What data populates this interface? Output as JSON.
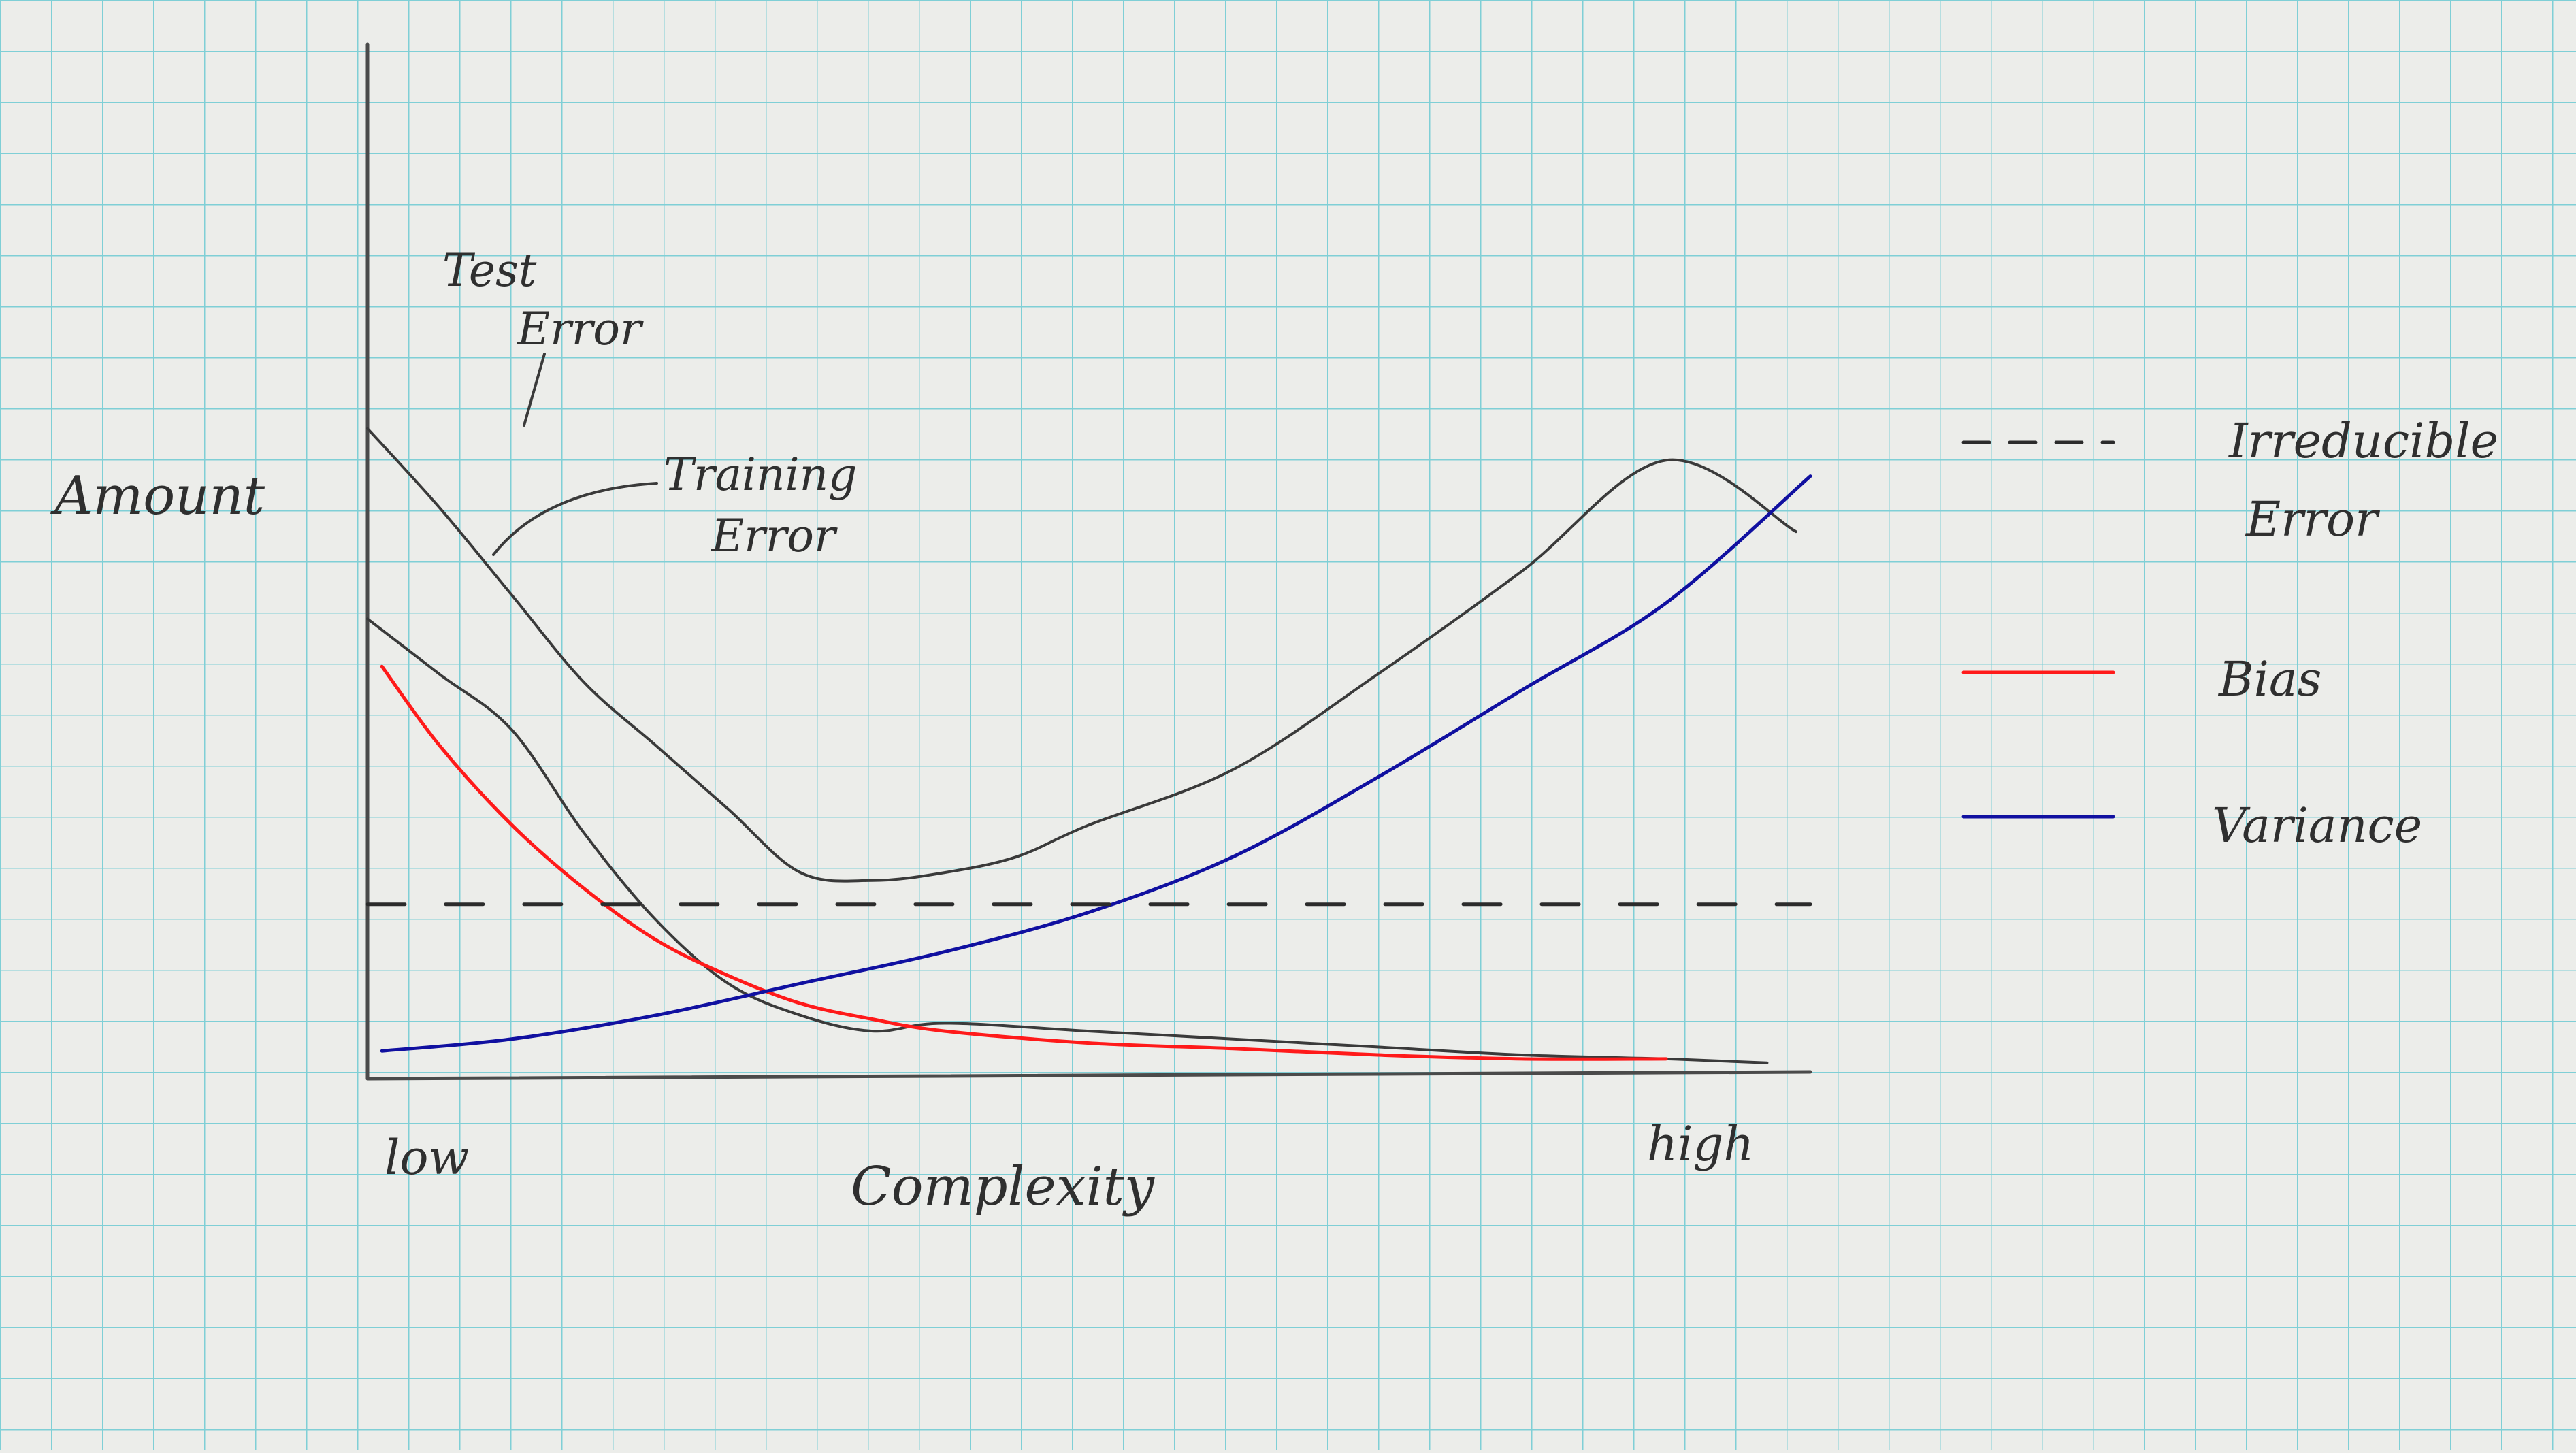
{
  "chart_data": {
    "type": "line",
    "xlabel": "Complexity",
    "ylabel": "Amount",
    "x_tick_labels": {
      "low": "low",
      "high": "high"
    },
    "xlim": [
      0,
      10
    ],
    "ylim": [
      0,
      10
    ],
    "grid": true,
    "legend_placement": "right",
    "annotations": [
      {
        "text_lines": [
          "Test",
          "Error"
        ],
        "target": "Test Error"
      },
      {
        "text_lines": [
          "Training",
          "Error"
        ],
        "target": "Training Error"
      }
    ],
    "legend": [
      {
        "label_lines": [
          "Irreducible",
          "Error"
        ],
        "style": "dashed",
        "color": "#2b2b2b"
      },
      {
        "label_lines": [
          "Bias"
        ],
        "style": "solid",
        "color": "#ff1a1a"
      },
      {
        "label_lines": [
          "Variance"
        ],
        "style": "solid",
        "color": "#1010a0"
      }
    ],
    "series": [
      {
        "name": "Test Error",
        "color": "#3a3a3a",
        "x": [
          0,
          0.5,
          1.0,
          1.5,
          2.0,
          2.5,
          3.0,
          3.5,
          4.0,
          4.5,
          5.0,
          6.0,
          7.0,
          8.0,
          9.0,
          9.9
        ],
        "y": [
          8.2,
          7.2,
          6.1,
          5.0,
          4.2,
          3.4,
          2.6,
          2.5,
          2.6,
          2.8,
          3.2,
          3.9,
          5.1,
          6.4,
          7.8,
          6.9
        ]
      },
      {
        "name": "Training Error",
        "color": "#3a3a3a",
        "x": [
          0,
          0.5,
          1.0,
          1.5,
          2.0,
          2.5,
          3.0,
          3.5,
          4.0,
          5.0,
          6.0,
          7.0,
          8.0,
          9.0,
          9.7
        ],
        "y": [
          5.8,
          5.1,
          4.4,
          3.1,
          2.0,
          1.2,
          0.8,
          0.6,
          0.7,
          0.6,
          0.5,
          0.4,
          0.3,
          0.25,
          0.2
        ]
      },
      {
        "name": "Bias",
        "color": "#ff1a1a",
        "x": [
          0.1,
          0.5,
          1.0,
          1.5,
          2.0,
          2.5,
          3.0,
          3.5,
          4.0,
          5.0,
          6.0,
          7.0,
          8.0,
          9.0
        ],
        "y": [
          5.2,
          4.2,
          3.2,
          2.4,
          1.75,
          1.3,
          0.95,
          0.75,
          0.6,
          0.45,
          0.38,
          0.3,
          0.25,
          0.25
        ]
      },
      {
        "name": "Variance",
        "color": "#1010a0",
        "x": [
          0.1,
          1.0,
          2.0,
          3.0,
          4.0,
          5.0,
          6.0,
          7.0,
          8.0,
          9.0,
          10.0
        ],
        "y": [
          0.35,
          0.5,
          0.8,
          1.2,
          1.6,
          2.1,
          2.8,
          3.8,
          4.9,
          6.0,
          7.6
        ]
      },
      {
        "name": "Irreducible Error",
        "color": "#2b2b2b",
        "dashed": true,
        "x": [
          0,
          10
        ],
        "y": [
          2.2,
          2.2
        ]
      }
    ]
  }
}
